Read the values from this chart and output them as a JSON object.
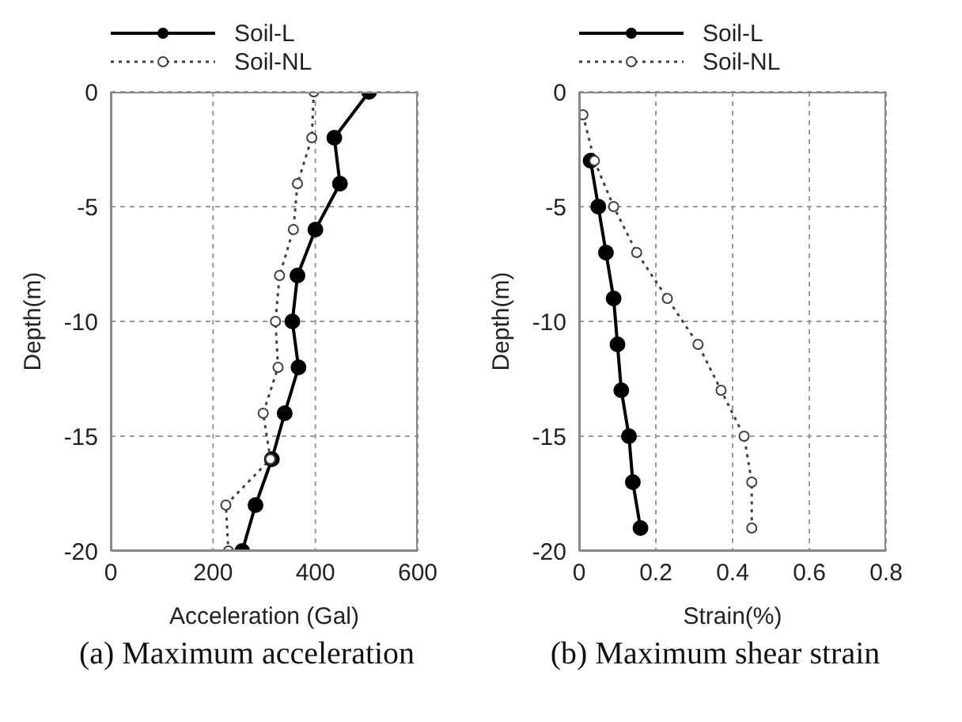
{
  "chart_data": [
    {
      "type": "line",
      "title": "(a) Maximum acceleration",
      "xlabel": "Acceleration (Gal)",
      "ylabel": "Depth(m)",
      "xlim": [
        0,
        600
      ],
      "xticks": [
        0,
        200,
        400,
        600
      ],
      "ylim": [
        -20,
        0
      ],
      "yticks": [
        0,
        -5,
        -10,
        -15,
        -20
      ],
      "grid": true,
      "legend": "top",
      "marker": "circle",
      "series": [
        {
          "name": "Soil-L",
          "color": "#000000",
          "line_style": "solid",
          "x": [
            505,
            437,
            448,
            400,
            365,
            355,
            367,
            340,
            315,
            283,
            257
          ],
          "values": [
            0,
            -2,
            -4,
            -6,
            -8,
            -10,
            -12,
            -14,
            -16,
            -18,
            -20
          ]
        },
        {
          "name": "Soil-NL",
          "color": "#404040",
          "line_style": "dotted",
          "x": [
            397,
            393,
            365,
            357,
            330,
            322,
            327,
            298,
            312,
            225,
            230
          ],
          "values": [
            0,
            -2,
            -4,
            -6,
            -8,
            -10,
            -12,
            -14,
            -16,
            -18,
            -20
          ]
        }
      ]
    },
    {
      "type": "line",
      "title": "(b) Maximum shear strain",
      "xlabel": "Strain(%)",
      "ylabel": "Depth(m)",
      "xlim": [
        0,
        0.8
      ],
      "xticks": [
        0,
        0.2,
        0.4,
        0.6,
        0.8
      ],
      "ylim": [
        -20,
        0
      ],
      "yticks": [
        0,
        -5,
        -10,
        -15,
        -20
      ],
      "grid": true,
      "legend": "top",
      "marker": "circle",
      "series": [
        {
          "name": "Soil-L",
          "color": "#000000",
          "line_style": "solid",
          "x": [
            0.03,
            0.05,
            0.07,
            0.09,
            0.1,
            0.11,
            0.13,
            0.14,
            0.16
          ],
          "values": [
            -3,
            -5,
            -7,
            -9,
            -11,
            -13,
            -15,
            -17,
            -19
          ]
        },
        {
          "name": "Soil-NL",
          "color": "#404040",
          "line_style": "dotted",
          "x": [
            0.01,
            0.04,
            0.09,
            0.15,
            0.23,
            0.31,
            0.37,
            0.43,
            0.45,
            0.45
          ],
          "values": [
            -1,
            -3,
            -5,
            -7,
            -9,
            -11,
            -13,
            -15,
            -17,
            -19
          ]
        }
      ]
    }
  ]
}
